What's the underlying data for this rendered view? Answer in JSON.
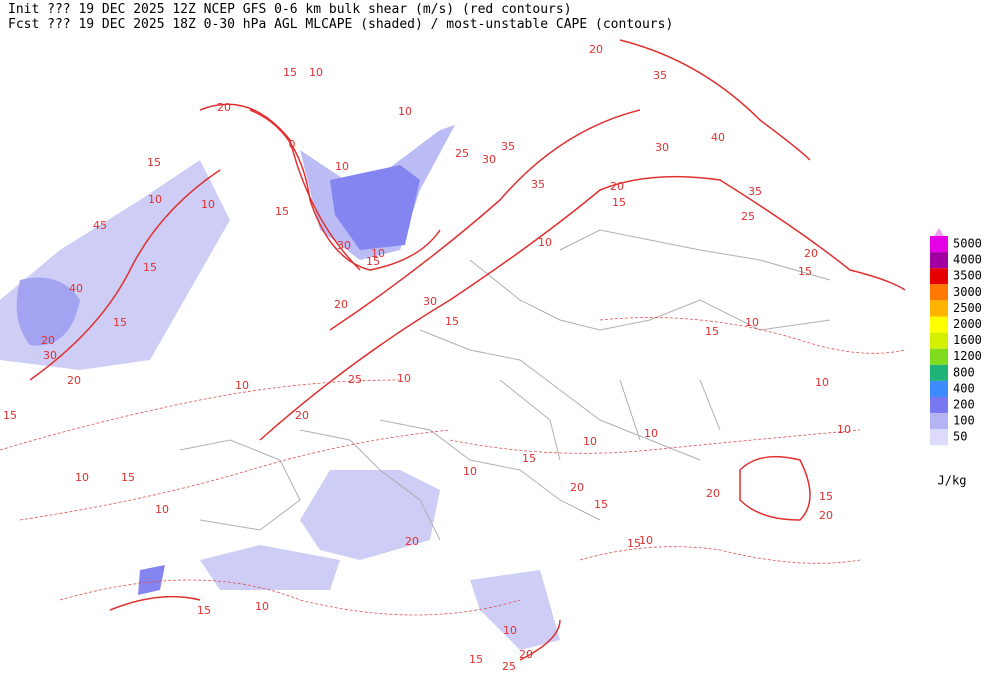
{
  "header": {
    "line1": "Init  ??? 19 DEC 2025 12Z  NCEP GFS 0-6 km bulk shear (m/s) (red contours)",
    "line2": "Fcst ??? 19 DEC 2025 18Z  0-30 hPa AGL MLCAPE (shaded) / most-unstable CAPE (contours)"
  },
  "map": {
    "contour_labels": [
      15,
      10,
      20,
      10,
      0,
      20,
      35,
      40,
      30,
      10,
      25,
      30,
      35,
      20,
      35,
      15,
      35,
      25,
      15,
      10,
      10,
      45,
      15,
      40,
      15,
      20,
      30,
      20,
      15,
      15,
      30,
      10,
      15,
      20,
      30,
      15,
      10,
      25,
      20,
      10,
      10,
      15,
      20,
      15,
      10,
      10,
      10,
      10,
      15,
      20,
      10,
      15,
      20,
      15,
      20,
      10,
      15,
      10,
      15,
      10,
      10,
      15,
      25,
      20,
      20,
      10,
      10,
      15
    ]
  },
  "legend": {
    "unit": "J/kg",
    "levels": [
      5000,
      4000,
      3500,
      3000,
      2500,
      2000,
      1600,
      1200,
      800,
      400,
      200,
      100,
      50
    ],
    "colors": [
      "#e600e6",
      "#a000a0",
      "#e60000",
      "#ff7800",
      "#ffb400",
      "#ffff00",
      "#d2f000",
      "#82dc1e",
      "#1eb478",
      "#3c8cff",
      "#7878f0",
      "#b4b4f5",
      "#dcdcfa"
    ],
    "top_color": "#f0a0f0"
  }
}
